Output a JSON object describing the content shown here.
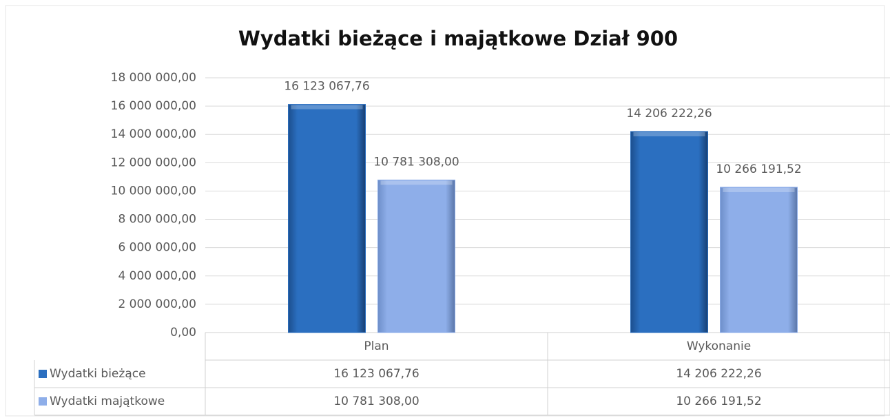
{
  "chart_data": {
    "type": "bar",
    "title": "Wydatki bieżące i majątkowe Dział 900",
    "categories": [
      "Plan",
      "Wykonanie"
    ],
    "series": [
      {
        "name": "Wydatki bieżące",
        "color": "#2b6fc0",
        "values": [
          16123067.76,
          14206222.26
        ],
        "value_labels": [
          "16 123 067,76",
          "14 206 222,26"
        ]
      },
      {
        "name": "Wydatki majątkowe",
        "color": "#8eaee9",
        "values": [
          10781308.0,
          10266191.52
        ],
        "value_labels": [
          "10 781 308,00",
          "10 266 191,52"
        ]
      }
    ],
    "ylim": [
      0,
      18000000
    ],
    "yticks": [
      {
        "value": 0,
        "label": "0,00"
      },
      {
        "value": 2000000,
        "label": "2 000 000,00"
      },
      {
        "value": 4000000,
        "label": "4 000 000,00"
      },
      {
        "value": 6000000,
        "label": "6 000 000,00"
      },
      {
        "value": 8000000,
        "label": "8 000 000,00"
      },
      {
        "value": 10000000,
        "label": "10 000 000,00"
      },
      {
        "value": 12000000,
        "label": "12 000 000,00"
      },
      {
        "value": 14000000,
        "label": "14 000 000,00"
      },
      {
        "value": 16000000,
        "label": "16 000 000,00"
      },
      {
        "value": 18000000,
        "label": "18 000 000,00"
      }
    ],
    "grid": true,
    "data_table": true
  }
}
